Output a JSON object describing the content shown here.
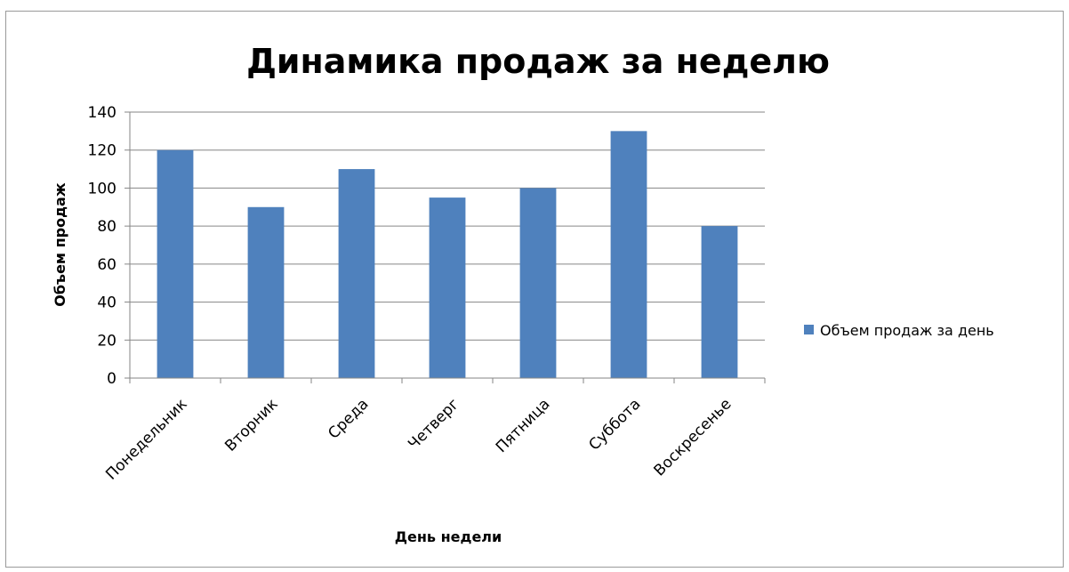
{
  "chart_data": {
    "type": "bar",
    "title": "Динамика продаж за неделю",
    "xlabel": "День недели",
    "ylabel": "Объем продаж",
    "categories": [
      "Понедельник",
      "Вторник",
      "Среда",
      "Четверг",
      "Пятница",
      "Суббота",
      "Воскресенье"
    ],
    "series": [
      {
        "name": "Объем продаж за день",
        "values": [
          120,
          90,
          110,
          95,
          100,
          130,
          80
        ],
        "color": "#4f81bd"
      }
    ],
    "ylim": [
      0,
      140
    ],
    "yticks": [
      0,
      20,
      40,
      60,
      80,
      100,
      120,
      140
    ],
    "grid": true,
    "legend_position": "right"
  }
}
